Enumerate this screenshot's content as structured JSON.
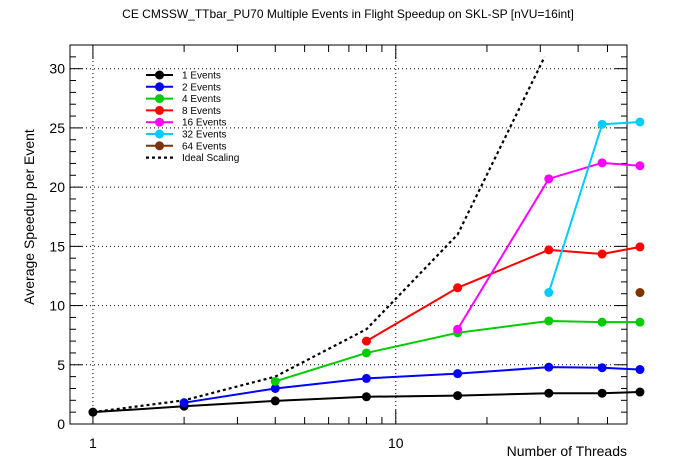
{
  "chart_data": {
    "type": "line",
    "title": "CE CMSSW_TTbar_PU70 Multiple Events in Flight Speedup on SKL-SP [nVU=16int]",
    "xlabel": "Number of Threads",
    "ylabel": "Average Speedup per Event",
    "x_scale": "log",
    "xlim": [
      0.84,
      58
    ],
    "ylim": [
      0,
      32
    ],
    "x_tick_labels": [
      {
        "value": 1,
        "label": "1"
      },
      {
        "value": 10,
        "label": "10"
      }
    ],
    "y_tick_labels": [
      {
        "value": 0,
        "label": "0"
      },
      {
        "value": 5,
        "label": "5"
      },
      {
        "value": 10,
        "label": "10"
      },
      {
        "value": 15,
        "label": "15"
      },
      {
        "value": 20,
        "label": "20"
      },
      {
        "value": 25,
        "label": "25"
      },
      {
        "value": 30,
        "label": "30"
      }
    ],
    "grid": true,
    "legend_position": "top-left",
    "series": [
      {
        "name": "1 Events",
        "color": "#000000",
        "x": [
          1,
          2,
          4,
          8,
          16,
          32,
          48,
          64
        ],
        "y": [
          1.0,
          1.5,
          1.95,
          2.3,
          2.4,
          2.6,
          2.6,
          2.7
        ]
      },
      {
        "name": "2 Events",
        "color": "#0000ff",
        "x": [
          2,
          4,
          8,
          16,
          32,
          48,
          64
        ],
        "y": [
          1.8,
          3.0,
          3.85,
          4.25,
          4.8,
          4.75,
          4.6
        ]
      },
      {
        "name": "4 Events",
        "color": "#00cc00",
        "x": [
          4,
          8,
          16,
          32,
          48,
          64
        ],
        "y": [
          3.6,
          6.0,
          7.7,
          8.7,
          8.6,
          8.6
        ]
      },
      {
        "name": "8 Events",
        "color": "#ff0000",
        "x": [
          8,
          16,
          32,
          48,
          64
        ],
        "y": [
          7.0,
          11.5,
          14.7,
          14.35,
          14.95
        ]
      },
      {
        "name": "16 Events",
        "color": "#ff00ff",
        "x": [
          16,
          32,
          48,
          64
        ],
        "y": [
          8.0,
          20.7,
          22.05,
          21.8
        ]
      },
      {
        "name": "32 Events",
        "color": "#00ccff",
        "x": [
          32,
          48,
          64
        ],
        "y": [
          11.1,
          25.3,
          25.5
        ]
      },
      {
        "name": "64 Events",
        "color": "#7f3300",
        "x": [
          64
        ],
        "y": [
          11.1
        ]
      }
    ],
    "ideal_scaling": {
      "name": "Ideal Scaling",
      "color": "#000000",
      "x": [
        1,
        2,
        4,
        8,
        16,
        31
      ],
      "y": [
        1,
        2,
        4,
        8,
        16,
        31
      ]
    }
  }
}
